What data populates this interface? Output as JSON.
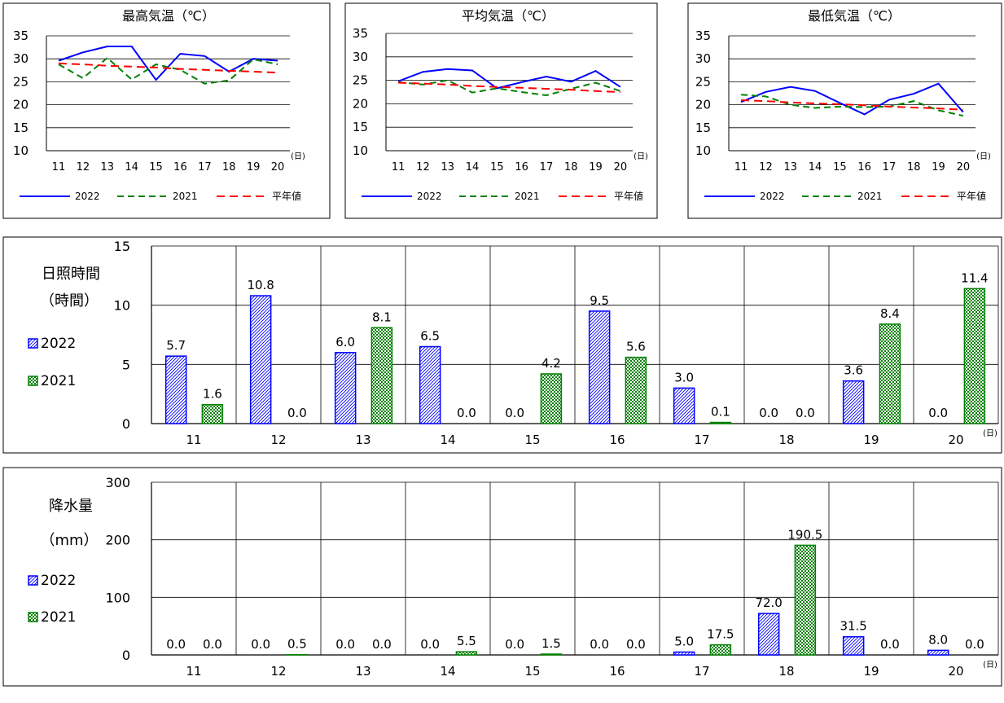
{
  "chart_data": [
    {
      "type": "line",
      "title": "最高気温（℃）",
      "x": [
        "11",
        "12",
        "13",
        "14",
        "15",
        "16",
        "17",
        "18",
        "19",
        "20"
      ],
      "x_unit": "(日)",
      "ylim": [
        10,
        35
      ],
      "yticks": [
        "10",
        "15",
        "20",
        "25",
        "30",
        "35"
      ],
      "grid": true,
      "legend": "bottom",
      "series": [
        {
          "name": "2022",
          "values": [
            29.6,
            31.4,
            32.7,
            32.7,
            25.4,
            31.1,
            30.6,
            27.2,
            30.0,
            29.6
          ],
          "color": "#0000ff",
          "dash": "solid"
        },
        {
          "name": "2021",
          "values": [
            28.8,
            25.8,
            30.2,
            25.5,
            28.8,
            27.6,
            24.6,
            25.3,
            29.9,
            28.8
          ],
          "color": "#008000",
          "dash": "dashed"
        },
        {
          "name": "平年値",
          "values": [
            29.0,
            28.8,
            28.5,
            28.3,
            28.1,
            27.8,
            27.6,
            27.4,
            27.2,
            27.0
          ],
          "color": "#ff0000",
          "dash": "dashed"
        }
      ]
    },
    {
      "type": "line",
      "title": "平均気温（℃）",
      "x": [
        "11",
        "12",
        "13",
        "14",
        "15",
        "16",
        "17",
        "18",
        "19",
        "20"
      ],
      "x_unit": "(日)",
      "ylim": [
        10,
        35
      ],
      "yticks": [
        "10",
        "15",
        "20",
        "25",
        "30",
        "35"
      ],
      "grid": true,
      "legend": "bottom",
      "series": [
        {
          "name": "2022",
          "values": [
            24.8,
            26.8,
            27.4,
            27.1,
            23.3,
            24.6,
            25.8,
            24.7,
            27.0,
            23.6
          ],
          "color": "#0000ff",
          "dash": "solid"
        },
        {
          "name": "2021",
          "values": [
            24.6,
            24.1,
            25.0,
            22.4,
            23.3,
            22.5,
            21.8,
            23.2,
            24.5,
            22.7
          ],
          "color": "#008000",
          "dash": "dashed"
        },
        {
          "name": "平年値",
          "values": [
            24.5,
            24.3,
            24.1,
            23.8,
            23.6,
            23.4,
            23.2,
            23.0,
            22.7,
            22.5
          ],
          "color": "#ff0000",
          "dash": "dashed"
        }
      ]
    },
    {
      "type": "line",
      "title": "最低気温（℃）",
      "x": [
        "11",
        "12",
        "13",
        "14",
        "15",
        "16",
        "17",
        "18",
        "19",
        "20"
      ],
      "x_unit": "(日)",
      "ylim": [
        10,
        35
      ],
      "yticks": [
        "10",
        "15",
        "20",
        "25",
        "30",
        "35"
      ],
      "grid": true,
      "legend": "bottom",
      "series": [
        {
          "name": "2022",
          "values": [
            20.6,
            22.8,
            23.9,
            23.0,
            20.4,
            17.9,
            21.1,
            22.4,
            24.6,
            18.4
          ],
          "color": "#0000ff",
          "dash": "solid"
        },
        {
          "name": "2021",
          "values": [
            22.2,
            21.8,
            20.0,
            19.3,
            19.6,
            19.5,
            19.6,
            20.8,
            18.8,
            17.6
          ],
          "color": "#008000",
          "dash": "dashed"
        },
        {
          "name": "平年値",
          "values": [
            21.0,
            20.8,
            20.5,
            20.3,
            20.1,
            19.9,
            19.6,
            19.4,
            19.2,
            18.9
          ],
          "color": "#ff0000",
          "dash": "dashed"
        }
      ]
    },
    {
      "type": "bar",
      "title": "日照時間",
      "ylabel": "（時間）",
      "categories": [
        "11",
        "12",
        "13",
        "14",
        "15",
        "16",
        "17",
        "18",
        "19",
        "20"
      ],
      "x_unit": "(日)",
      "ylim": [
        0,
        15
      ],
      "yticks": [
        "0",
        "5",
        "10",
        "15"
      ],
      "grid": true,
      "legend": "left",
      "series": [
        {
          "name": "2022",
          "values": [
            5.7,
            10.8,
            6.0,
            6.5,
            0.0,
            9.5,
            3.0,
            0.0,
            3.6,
            0.0
          ],
          "labels": [
            "5.7",
            "10.8",
            "6.0",
            "6.5",
            "0.0",
            "9.5",
            "3.0",
            "0.0",
            "3.6",
            "0.0"
          ],
          "color": "#0000ff"
        },
        {
          "name": "2021",
          "values": [
            1.6,
            0.0,
            8.1,
            0.0,
            4.2,
            5.6,
            0.1,
            0.0,
            8.4,
            11.4
          ],
          "labels": [
            "1.6",
            "0.0",
            "8.1",
            "0.0",
            "4.2",
            "5.6",
            "0.1",
            "0.0",
            "8.4",
            "11.4"
          ],
          "color": "#008000"
        }
      ]
    },
    {
      "type": "bar",
      "title": "降水量",
      "ylabel": "（mm）",
      "categories": [
        "11",
        "12",
        "13",
        "14",
        "15",
        "16",
        "17",
        "18",
        "19",
        "20"
      ],
      "x_unit": "(日)",
      "ylim": [
        0,
        300
      ],
      "yticks": [
        "0",
        "100",
        "200",
        "300"
      ],
      "grid": true,
      "legend": "left",
      "series": [
        {
          "name": "2022",
          "values": [
            0.0,
            0.0,
            0.0,
            0.0,
            0.0,
            0.0,
            5.0,
            72.0,
            31.5,
            8.0
          ],
          "labels": [
            "0.0",
            "0.0",
            "0.0",
            "0.0",
            "0.0",
            "0.0",
            "5.0",
            "72.0",
            "31.5",
            "8.0"
          ],
          "color": "#0000ff"
        },
        {
          "name": "2021",
          "values": [
            0.0,
            0.5,
            0.0,
            5.5,
            1.5,
            0.0,
            17.5,
            190.5,
            0.0,
            0.0
          ],
          "labels": [
            "0.0",
            "0.5",
            "0.0",
            "5.5",
            "1.5",
            "0.0",
            "17.5",
            "190.5",
            "0.0",
            "0.0"
          ],
          "color": "#008000"
        }
      ]
    }
  ]
}
